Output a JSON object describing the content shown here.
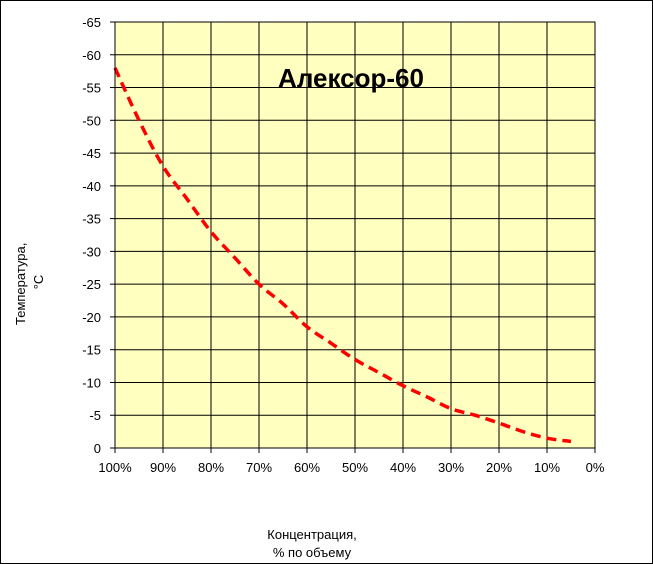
{
  "chart_data": {
    "type": "line",
    "title": "Алексор-60",
    "ylabel_lines": [
      "Температура,",
      "°C"
    ],
    "xlabel_lines": [
      "Концентрация,",
      "% по объему"
    ],
    "xlim": [
      100,
      0
    ],
    "ylim": [
      0,
      -65
    ],
    "x_ticks": [
      100,
      90,
      80,
      70,
      60,
      50,
      40,
      30,
      20,
      10,
      0
    ],
    "x_tick_labels": [
      "100%",
      "90%",
      "80%",
      "70%",
      "60%",
      "50%",
      "40%",
      "30%",
      "20%",
      "10%",
      "0%"
    ],
    "y_ticks": [
      0,
      -5,
      -10,
      -15,
      -20,
      -25,
      -30,
      -35,
      -40,
      -45,
      -50,
      -55,
      -60,
      -65
    ],
    "y_tick_labels": [
      "0",
      "-5",
      "-10",
      "-15",
      "-20",
      "-25",
      "-30",
      "-35",
      "-40",
      "-45",
      "-50",
      "-55",
      "-60",
      "-65"
    ],
    "grid": true,
    "legend": "none",
    "plot_background": "#FFFFC0",
    "series": [
      {
        "color": "#FF0000",
        "style": "dashed",
        "x": [
          100,
          95,
          90,
          85,
          80,
          75,
          70,
          65,
          60,
          55,
          50,
          45,
          40,
          35,
          30,
          25,
          20,
          15,
          10,
          5
        ],
        "y": [
          -58,
          -50,
          -43,
          -38,
          -33,
          -29,
          -25,
          -22,
          -18.5,
          -16,
          -13.5,
          -11.5,
          -9.5,
          -7.8,
          -6,
          -5,
          -3.8,
          -2.5,
          -1.5,
          -1
        ]
      }
    ]
  }
}
